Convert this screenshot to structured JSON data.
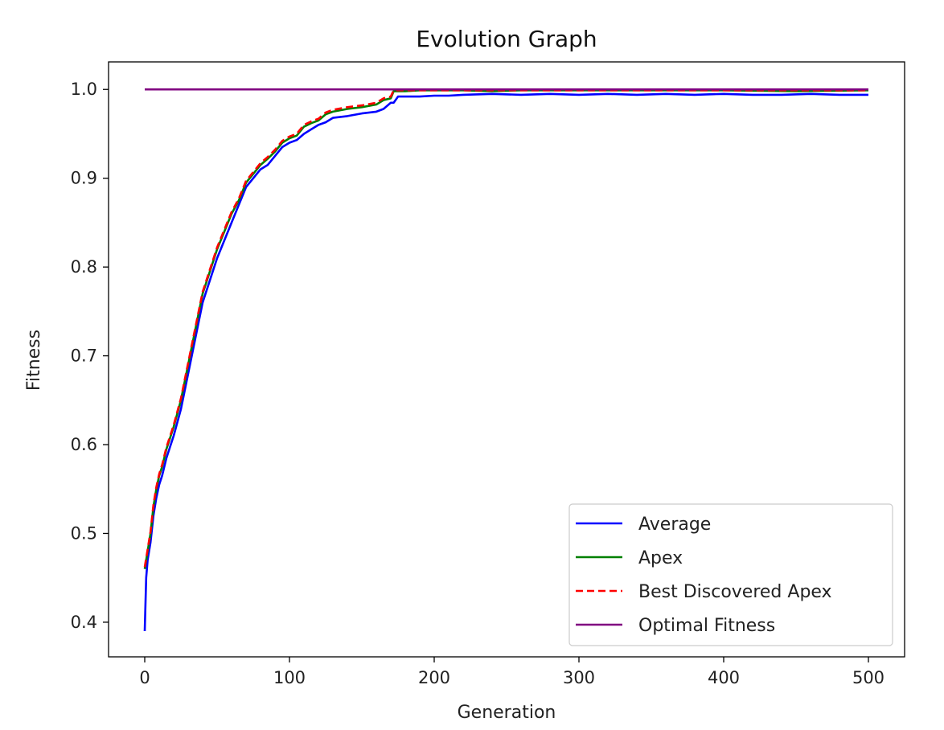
{
  "chart_data": {
    "type": "line",
    "title": "Evolution Graph",
    "xlabel": "Generation",
    "ylabel": "Fitness",
    "xlim": [
      -25,
      525
    ],
    "ylim": [
      0.361,
      1.031
    ],
    "xticks": [
      0,
      100,
      200,
      300,
      400,
      500
    ],
    "yticks": [
      0.4,
      0.5,
      0.6,
      0.7,
      0.8,
      0.9,
      1.0
    ],
    "yticks_labels": [
      "0.4",
      "0.5",
      "0.6",
      "0.7",
      "0.8",
      "0.9",
      "1.0"
    ],
    "grid": false,
    "legend_position": "lower-right",
    "series": [
      {
        "name": "Average",
        "color": "#0000ff",
        "style": "solid",
        "x": [
          0,
          1,
          2,
          4,
          6,
          8,
          10,
          12,
          15,
          18,
          20,
          25,
          30,
          35,
          40,
          45,
          50,
          55,
          60,
          65,
          70,
          75,
          80,
          85,
          90,
          95,
          100,
          105,
          110,
          115,
          120,
          125,
          130,
          140,
          150,
          160,
          165,
          170,
          172,
          175,
          180,
          190,
          200,
          210,
          220,
          240,
          260,
          280,
          300,
          320,
          340,
          360,
          380,
          400,
          420,
          440,
          460,
          480,
          500
        ],
        "values": [
          0.39,
          0.45,
          0.47,
          0.49,
          0.52,
          0.54,
          0.555,
          0.565,
          0.585,
          0.6,
          0.61,
          0.64,
          0.68,
          0.72,
          0.76,
          0.785,
          0.81,
          0.83,
          0.85,
          0.87,
          0.89,
          0.9,
          0.91,
          0.915,
          0.925,
          0.935,
          0.94,
          0.943,
          0.95,
          0.955,
          0.96,
          0.963,
          0.968,
          0.97,
          0.973,
          0.975,
          0.978,
          0.985,
          0.985,
          0.992,
          0.992,
          0.992,
          0.993,
          0.993,
          0.994,
          0.995,
          0.994,
          0.995,
          0.994,
          0.995,
          0.994,
          0.995,
          0.994,
          0.995,
          0.994,
          0.994,
          0.995,
          0.994,
          0.994
        ]
      },
      {
        "name": "Apex",
        "color": "#008000",
        "style": "solid",
        "x": [
          0,
          2,
          4,
          6,
          8,
          10,
          12,
          15,
          18,
          20,
          25,
          30,
          35,
          40,
          45,
          50,
          55,
          60,
          65,
          70,
          75,
          80,
          85,
          90,
          95,
          100,
          105,
          110,
          115,
          120,
          125,
          130,
          140,
          150,
          160,
          165,
          170,
          172,
          175,
          180,
          190,
          200,
          220,
          240,
          260,
          300,
          350,
          400,
          450,
          500
        ],
        "values": [
          0.46,
          0.48,
          0.5,
          0.53,
          0.55,
          0.565,
          0.575,
          0.595,
          0.61,
          0.62,
          0.65,
          0.69,
          0.73,
          0.77,
          0.795,
          0.82,
          0.84,
          0.86,
          0.875,
          0.895,
          0.905,
          0.915,
          0.922,
          0.93,
          0.94,
          0.945,
          0.948,
          0.958,
          0.962,
          0.965,
          0.972,
          0.975,
          0.978,
          0.98,
          0.983,
          0.988,
          0.99,
          0.998,
          0.998,
          0.998,
          0.999,
          0.999,
          0.999,
          0.998,
          0.999,
          0.999,
          0.999,
          0.999,
          0.998,
          0.999
        ]
      },
      {
        "name": "Best Discovered Apex",
        "color": "#ff0000",
        "style": "dashed",
        "x": [
          0,
          2,
          4,
          6,
          8,
          10,
          12,
          15,
          18,
          20,
          25,
          30,
          35,
          40,
          45,
          50,
          55,
          60,
          65,
          70,
          75,
          80,
          85,
          90,
          95,
          100,
          105,
          110,
          115,
          120,
          125,
          130,
          140,
          150,
          160,
          165,
          170,
          172,
          175,
          200,
          250,
          300,
          350,
          400,
          450,
          500
        ],
        "values": [
          0.462,
          0.482,
          0.502,
          0.532,
          0.552,
          0.567,
          0.577,
          0.597,
          0.612,
          0.622,
          0.652,
          0.692,
          0.732,
          0.772,
          0.797,
          0.822,
          0.842,
          0.862,
          0.877,
          0.897,
          0.907,
          0.917,
          0.924,
          0.932,
          0.942,
          0.947,
          0.95,
          0.96,
          0.964,
          0.967,
          0.974,
          0.977,
          0.98,
          0.982,
          0.985,
          0.99,
          0.992,
          0.999,
          0.999,
          0.999,
          0.999,
          0.999,
          0.999,
          0.999,
          0.999,
          0.999
        ]
      },
      {
        "name": "Optimal Fitness",
        "color": "#800080",
        "style": "solid",
        "x": [
          0,
          500
        ],
        "values": [
          1.0,
          1.0
        ]
      }
    ]
  }
}
